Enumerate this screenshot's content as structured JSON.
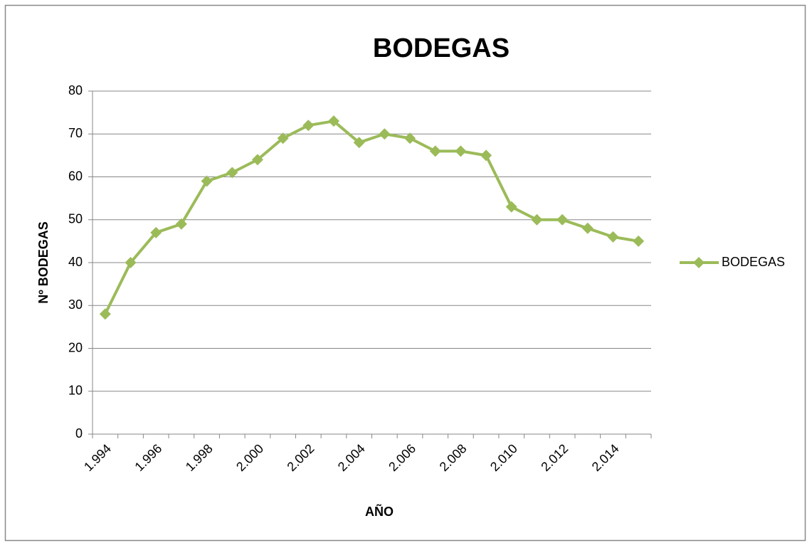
{
  "chart_data": {
    "type": "line",
    "title": "BODEGAS",
    "x_label": "AÑO",
    "y_label": "Nº BODEGAS",
    "categories": [
      "1.994",
      null,
      "1.996",
      null,
      "1.998",
      null,
      "2.000",
      null,
      "2.002",
      null,
      "2.004",
      null,
      "2.006",
      null,
      "2.008",
      null,
      "2.010",
      null,
      "2.012",
      null,
      "2.014",
      null
    ],
    "series": [
      {
        "name": "BODEGAS",
        "color": "#9bbb59",
        "values": [
          28,
          40,
          47,
          49,
          59,
          61,
          64,
          69,
          72,
          73,
          68,
          70,
          69,
          66,
          66,
          65,
          53,
          50,
          50,
          48,
          46,
          45
        ]
      }
    ],
    "ylim": [
      0,
      80
    ],
    "yticks": [
      0,
      10,
      20,
      30,
      40,
      50,
      60,
      70,
      80
    ],
    "grid": true,
    "legend": "right"
  }
}
